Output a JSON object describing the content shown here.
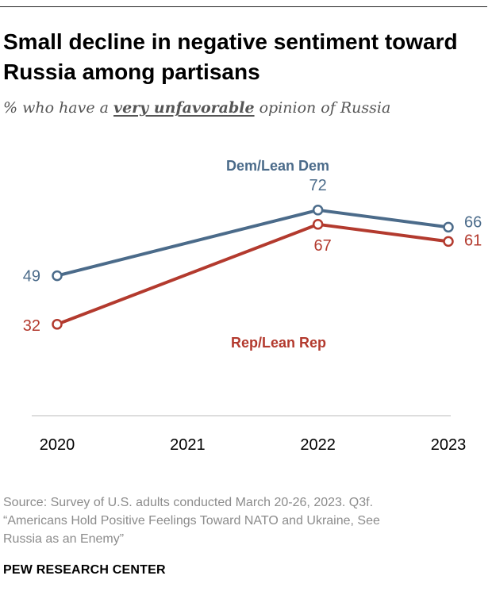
{
  "header": {
    "title": "Small decline in negative sentiment toward Russia among partisans",
    "subtitle_prefix": "% who have a ",
    "subtitle_emphasis": "very unfavorable",
    "subtitle_suffix": " opinion of Russia"
  },
  "chart_data": {
    "type": "line",
    "title": "Small decline in negative sentiment toward Russia among partisans",
    "subtitle": "% who have a very unfavorable opinion of Russia",
    "x": [
      "2020",
      "2021",
      "2022",
      "2023"
    ],
    "xlabel": "",
    "ylabel": "",
    "ylim": [
      0,
      100
    ],
    "grid": false,
    "series": [
      {
        "name": "Dem/Lean Dem",
        "color": "#4b6b8a",
        "points": [
          {
            "x": "2020",
            "y": 49,
            "label": "49"
          },
          {
            "x": "2022",
            "y": 72,
            "label": "72"
          },
          {
            "x": "2023",
            "y": 66,
            "label": "66"
          }
        ]
      },
      {
        "name": "Rep/Lean Rep",
        "color": "#b33a2e",
        "points": [
          {
            "x": "2020",
            "y": 32,
            "label": "32"
          },
          {
            "x": "2022",
            "y": 67,
            "label": "67"
          },
          {
            "x": "2023",
            "y": 61,
            "label": "61"
          }
        ]
      }
    ]
  },
  "footer": {
    "source_line1": "Source: Survey of U.S. adults conducted March 20-26, 2023. Q3f.",
    "source_line2": "“Americans Hold Positive Feelings Toward NATO and Ukraine, See",
    "source_line3": "Russia as an Enemy”",
    "brand": "PEW RESEARCH CENTER"
  },
  "colors": {
    "axis": "#bbbbbb",
    "text": "#000000",
    "muted": "#8c8c8c"
  }
}
